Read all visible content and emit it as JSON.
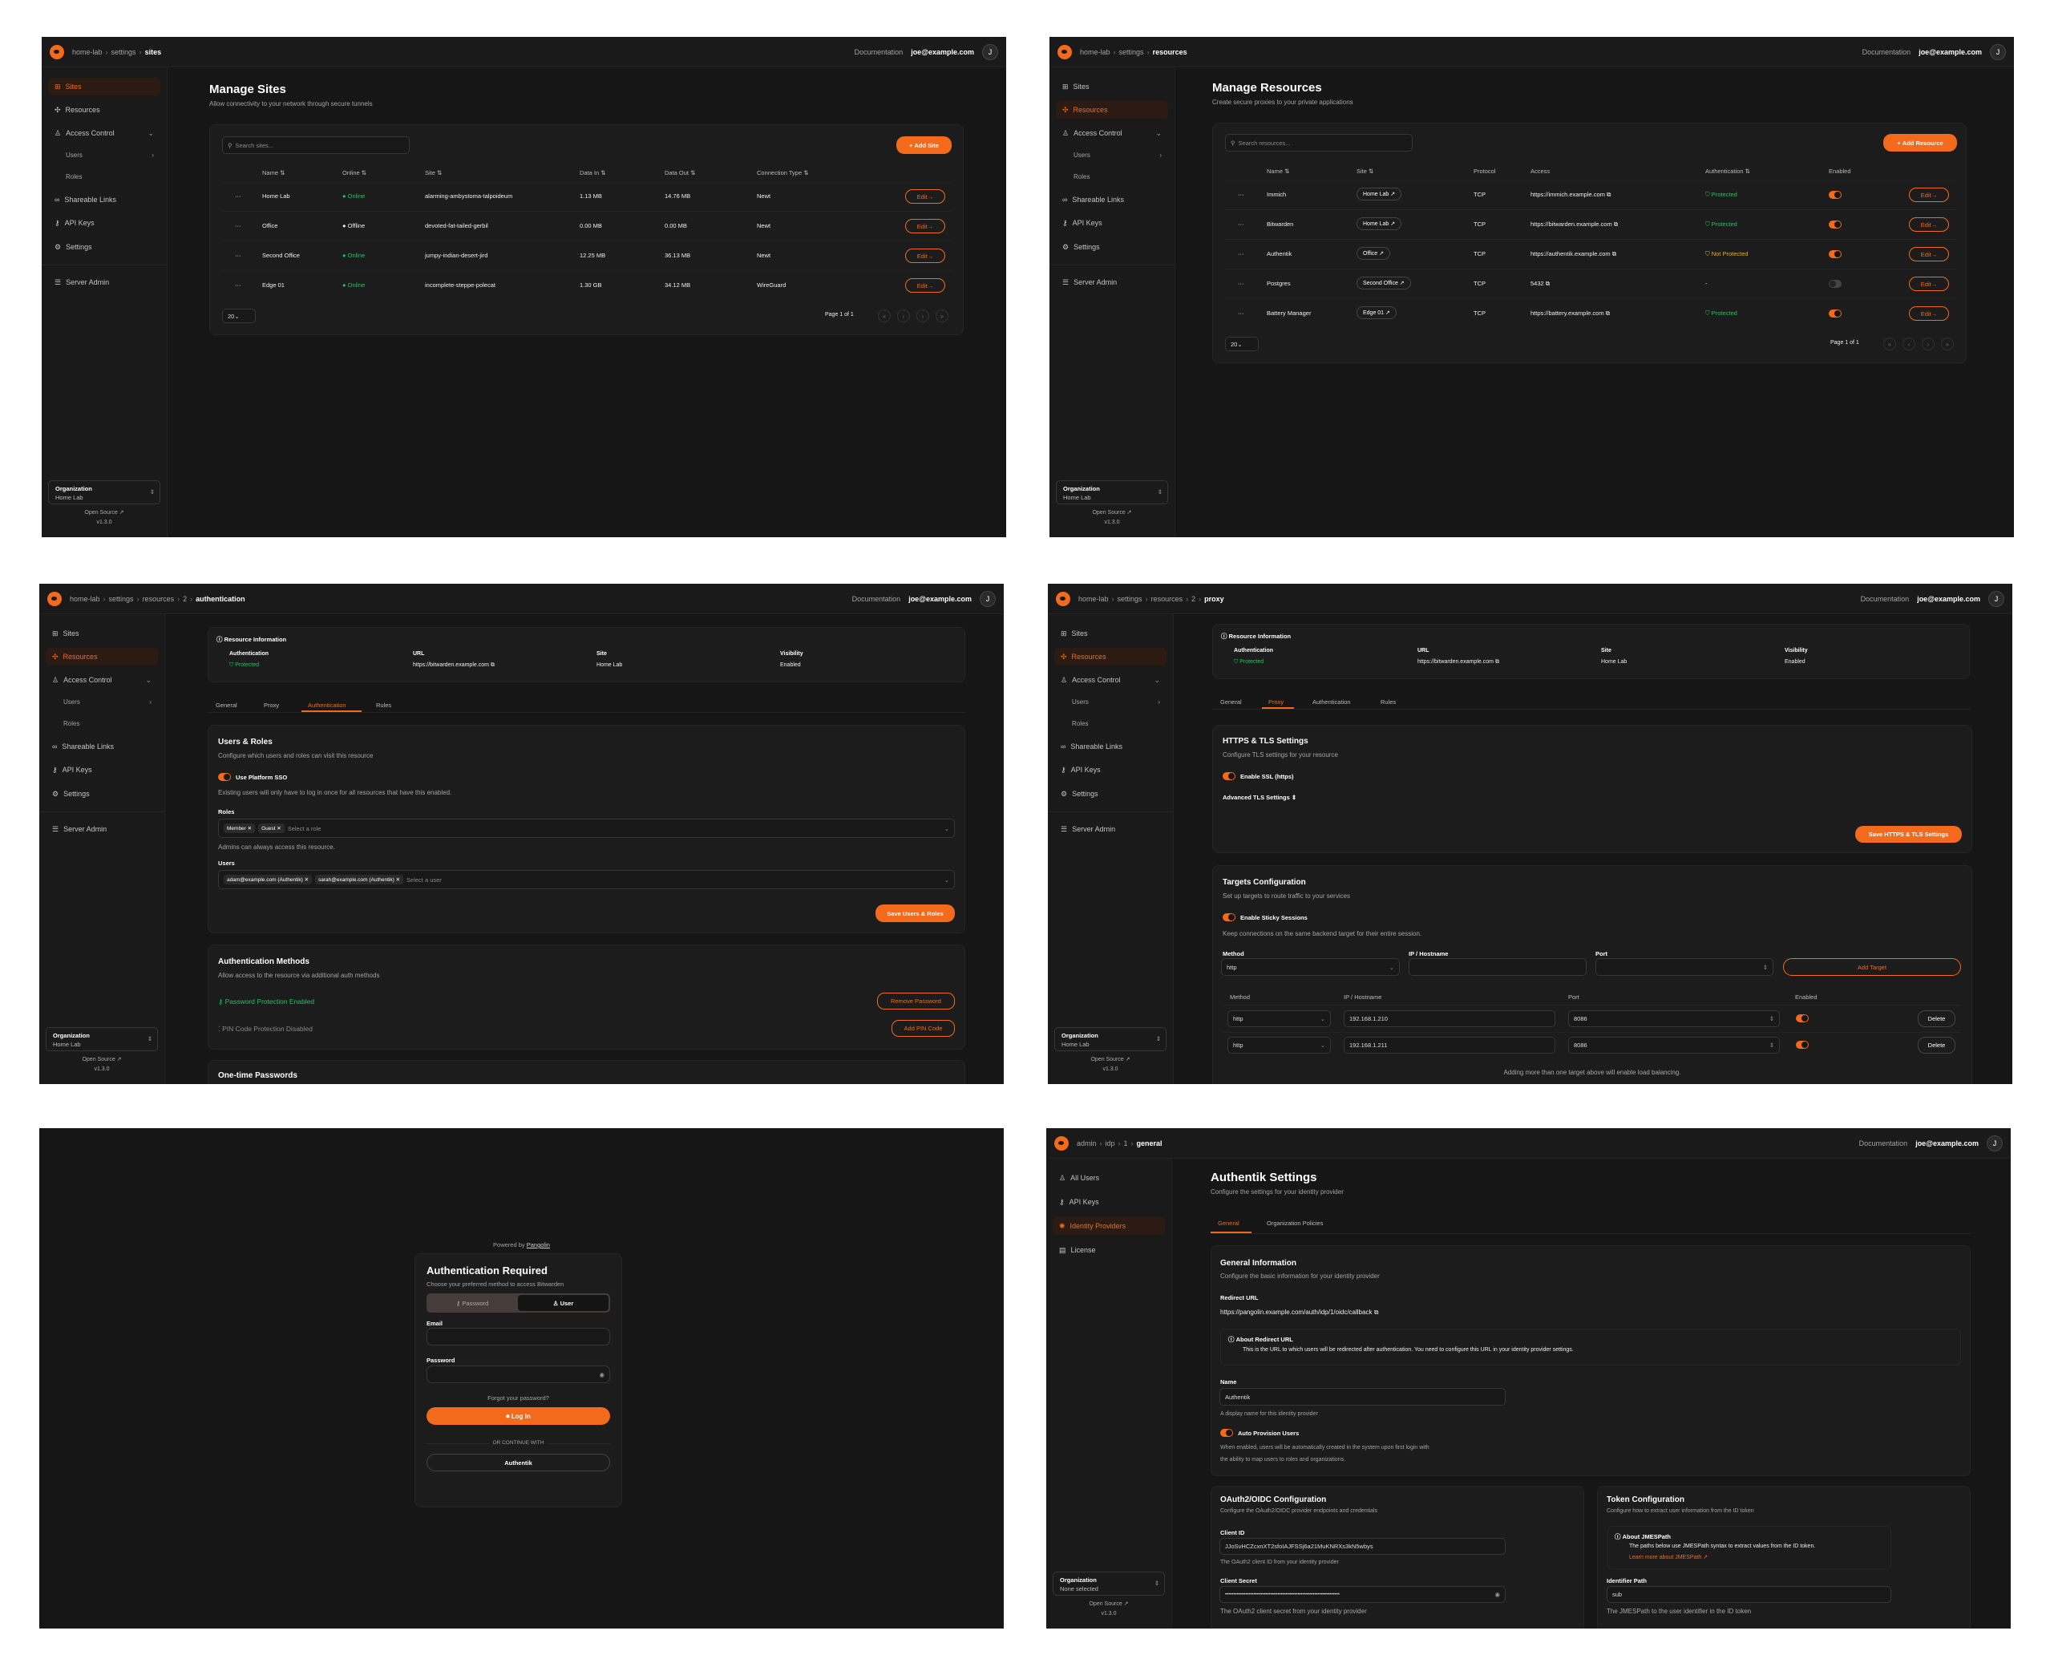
{
  "common": {
    "documentation": "Documentation",
    "user_email": "joe@example.com",
    "avatar_initial": "J",
    "org_label": "Organization",
    "open_source": "Open Source",
    "version": "v1.3.0",
    "accent": "#f36a1d",
    "edit_label": "Edit",
    "page_size": "20",
    "page_label": "Page 1 of 1"
  },
  "nav": [
    {
      "label": "Sites",
      "icon": "sites-icon"
    },
    {
      "label": "Resources",
      "icon": "resources-icon"
    },
    {
      "label": "Access Control",
      "icon": "users-icon",
      "chevron": "down"
    },
    {
      "label": "Users",
      "sub": true,
      "chevron": "right"
    },
    {
      "label": "Roles",
      "sub": true
    },
    {
      "label": "Shareable Links",
      "icon": "link-icon"
    },
    {
      "label": "API Keys",
      "icon": "key-icon"
    },
    {
      "label": "Settings",
      "icon": "gear-icon"
    },
    {
      "label": "Server Admin",
      "icon": "server-icon"
    }
  ],
  "admin_nav": [
    {
      "label": "All Users",
      "icon": "users-icon"
    },
    {
      "label": "API Keys",
      "icon": "key-icon"
    },
    {
      "label": "Identity Providers",
      "icon": "fingerprint-icon"
    },
    {
      "label": "License",
      "icon": "license-icon"
    }
  ],
  "sites": {
    "breadcrumb": [
      "home-lab",
      "settings",
      "sites"
    ],
    "org_name": "Home Lab",
    "title": "Manage Sites",
    "subtitle": "Allow connectivity to your network through secure tunnels",
    "search_placeholder": "Search sites...",
    "add_label": "Add Site",
    "columns": [
      "Name",
      "Online",
      "Site",
      "Data In",
      "Data Out",
      "Connection Type"
    ],
    "rows": [
      {
        "name": "Home Lab",
        "online": "Online",
        "is_online": true,
        "site": "alarming-ambystoma-talpoideum",
        "data_in": "1.13 MB",
        "data_out": "14.76 MB",
        "type": "Newt"
      },
      {
        "name": "Office",
        "online": "Offline",
        "is_online": false,
        "site": "devoted-fat-tailed-gerbil",
        "data_in": "0.00 MB",
        "data_out": "0.00 MB",
        "type": "Newt"
      },
      {
        "name": "Second Office",
        "online": "Online",
        "is_online": true,
        "site": "jumpy-indian-desert-jird",
        "data_in": "12.25 MB",
        "data_out": "36.13 MB",
        "type": "Newt"
      },
      {
        "name": "Edge 01",
        "online": "Online",
        "is_online": true,
        "site": "incomplete-steppe-polecat",
        "data_in": "1.30 GB",
        "data_out": "34.12 MB",
        "type": "WireGuard"
      }
    ]
  },
  "resources": {
    "breadcrumb": [
      "home-lab",
      "settings",
      "resources"
    ],
    "org_name": "Home Lab",
    "title": "Manage Resources",
    "subtitle": "Create secure proxies to your private applications",
    "search_placeholder": "Search resources...",
    "add_label": "Add Resource",
    "columns": [
      "Name",
      "Site",
      "Protocol",
      "Access",
      "Authentication",
      "Enabled"
    ],
    "rows": [
      {
        "name": "Immich",
        "site": "Home Lab",
        "protocol": "TCP",
        "access": "https://immich.example.com",
        "auth": "Protected",
        "auth_state": "protected",
        "enabled": true
      },
      {
        "name": "Bitwarden",
        "site": "Home Lab",
        "protocol": "TCP",
        "access": "https://bitwarden.example.com",
        "auth": "Protected",
        "auth_state": "protected",
        "enabled": true
      },
      {
        "name": "Authentik",
        "site": "Office",
        "protocol": "TCP",
        "access": "https://authentik.example.com",
        "auth": "Not Protected",
        "auth_state": "not-protected",
        "enabled": true
      },
      {
        "name": "Postgres",
        "site": "Second Office",
        "protocol": "TCP",
        "access": "5432",
        "auth": "-",
        "auth_state": "none",
        "enabled": false
      },
      {
        "name": "Battery Manager",
        "site": "Edge 01",
        "protocol": "TCP",
        "access": "https://battery.example.com",
        "auth": "Protected",
        "auth_state": "protected",
        "enabled": true
      }
    ]
  },
  "resource_info": {
    "heading": "Resource Information",
    "auth_label": "Authentication",
    "auth_value": "Protected",
    "url_label": "URL",
    "url_value": "https://bitwarden.example.com",
    "site_label": "Site",
    "site_value": "Home Lab",
    "visibility_label": "Visibility",
    "visibility_value": "Enabled",
    "tabs": [
      "General",
      "Proxy",
      "Authentication",
      "Rules"
    ]
  },
  "auth_page": {
    "breadcrumb": [
      "home-lab",
      "settings",
      "resources",
      "2",
      "authentication"
    ],
    "org_name": "Home Lab",
    "users_roles": {
      "title": "Users & Roles",
      "subtitle": "Configure which users and roles can visit this resource",
      "sso_label": "Use Platform SSO",
      "sso_enabled": true,
      "sso_note": "Existing users will only have to log in once for all resources that have this enabled.",
      "roles_label": "Roles",
      "roles": [
        "Member",
        "Guest"
      ],
      "roles_placeholder": "Select a role",
      "admins_note": "Admins can always access this resource.",
      "users_label": "Users",
      "users": [
        "adam@example.com (Authentik)",
        "sarah@example.com (Authentik)"
      ],
      "users_placeholder": "Select a user",
      "save_label": "Save Users & Roles"
    },
    "methods": {
      "title": "Authentication Methods",
      "subtitle": "Allow access to the resource via additional auth methods",
      "password_status": "Password Protection Enabled",
      "remove_password": "Remove Password",
      "pin_status": "PIN Code Protection Disabled",
      "add_pin": "Add PIN Code"
    },
    "otp_title": "One-time Passwords"
  },
  "proxy_page": {
    "breadcrumb": [
      "home-lab",
      "settings",
      "resources",
      "2",
      "proxy"
    ],
    "org_name": "Home Lab",
    "tls": {
      "title": "HTTPS & TLS Settings",
      "subtitle": "Configure TLS settings for your resource",
      "ssl_label": "Enable SSL (https)",
      "ssl_enabled": true,
      "advanced_label": "Advanced TLS Settings",
      "save_label": "Save HTTPS & TLS Settings"
    },
    "targets": {
      "title": "Targets Configuration",
      "subtitle": "Set up targets to route traffic to your services",
      "sticky_label": "Enable Sticky Sessions",
      "sticky_enabled": true,
      "sticky_note": "Keep connections on the same backend target for their entire session.",
      "method_label": "Method",
      "method_value": "http",
      "ip_label": "IP / Hostname",
      "ip_value": "",
      "port_label": "Port",
      "port_value": "",
      "add_label": "Add Target",
      "columns": [
        "Method",
        "IP / Hostname",
        "Port",
        "Enabled"
      ],
      "rows": [
        {
          "method": "http",
          "ip": "192.168.1.210",
          "port": "8086",
          "enabled": true
        },
        {
          "method": "http",
          "ip": "192.168.1.211",
          "port": "8086",
          "enabled": true
        }
      ],
      "delete_label": "Delete",
      "footer_note": "Adding more than one target above will enable load balancing."
    }
  },
  "login": {
    "powered_by": "Powered by",
    "brand": "Pangolin",
    "title": "Authentication Required",
    "subtitle": "Choose your preferred method to access Bitwarden",
    "tab_password": "Password",
    "tab_user": "User",
    "active_tab": "User",
    "email_label": "Email",
    "email_value": "",
    "password_label": "Password",
    "password_value": "",
    "forgot": "Forgot your password?",
    "login_label": "Log In",
    "divider": "OR CONTINUE WITH",
    "sso_label": "Authentik"
  },
  "idp_page": {
    "breadcrumb": [
      "admin",
      "idp",
      "1",
      "general"
    ],
    "org_name": "None selected",
    "title": "Authentik Settings",
    "subtitle": "Configure the settings for your identity provider",
    "tabs": [
      "General",
      "Organization Policies"
    ],
    "general": {
      "title": "General Information",
      "subtitle": "Configure the basic information for your identity provider",
      "redirect_label": "Redirect URL",
      "redirect_url": "https://pangolin.example.com/auth/idp/1/oidc/callback",
      "about_title": "About Redirect URL",
      "about_text": "This is the URL to which users will be redirected after authentication. You need to configure this URL in your identity provider settings.",
      "name_label": "Name",
      "name_value": "Authentik",
      "name_hint": "A display name for this identity provider",
      "auto_label": "Auto Provision Users",
      "auto_enabled": true,
      "auto_desc_1": "When enabled, users will be automatically created in the system upon first login with",
      "auto_desc_2": "the ability to map users to roles and organizations."
    },
    "oauth": {
      "title": "OAuth2/OIDC Configuration",
      "subtitle": "Configure the OAuth2/OIDC provider endpoints and credentials",
      "client_id_label": "Client ID",
      "client_id": "JJoSvHCZcxnXT2sfoIAJFSSj6a21MuKNRXs3kN5wbys",
      "client_id_hint": "The OAuth2 client ID from your identity provider",
      "secret_label": "Client Secret",
      "secret_value": "••••••••••••••••••••••••••••••••••••••••••••••••••••••••••••••••••••",
      "secret_hint": "The OAuth2 client secret from your identity provider"
    },
    "token": {
      "title": "Token Configuration",
      "subtitle": "Configure how to extract user information from the ID token",
      "about_title": "About JMESPath",
      "about_text": "The paths below use JMESPath syntax to extract values from the ID token.",
      "about_link": "Learn more about JMESPath",
      "identifier_label": "Identifier Path",
      "identifier_value": "sub",
      "identifier_hint": "The JMESPath to the user identifier in the ID token"
    }
  }
}
